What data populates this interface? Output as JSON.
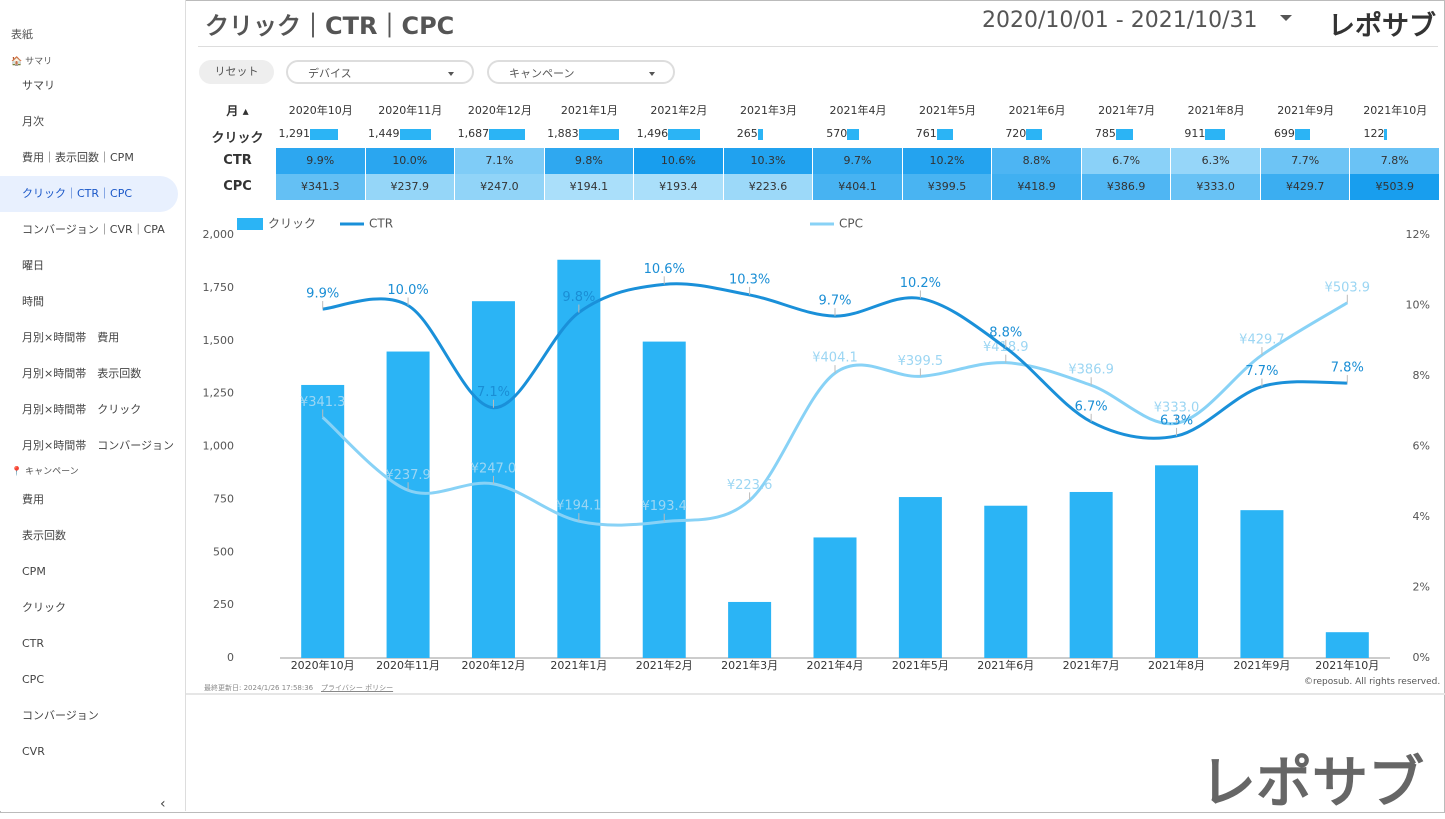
{
  "sidebar": {
    "top": "表紙",
    "sections": [
      {
        "heading": "サマリ",
        "items": [
          "サマリ",
          "月次",
          "費用｜表示回数｜CPM",
          "クリック｜CTR｜CPC",
          "コンバージョン｜CVR｜CPA",
          "曜日",
          "時間",
          "月別×時間帯　費用",
          "月別×時間帯　表示回数",
          "月別×時間帯　クリック",
          "月別×時間帯　コンバージョン"
        ]
      },
      {
        "heading": "キャンペーン",
        "items": [
          "費用",
          "表示回数",
          "CPM",
          "クリック",
          "CTR",
          "CPC",
          "コンバージョン",
          "CVR"
        ]
      }
    ]
  },
  "header": {
    "title": "クリック｜CTR｜CPC",
    "date_range": "2020/10/01 - 2021/10/31",
    "logo": "レポサブ"
  },
  "filters": {
    "reset": "リセット",
    "dropdowns": [
      "デバイス",
      "キャンペーン"
    ]
  },
  "table": {
    "month_header": "月"
  },
  "footer": {
    "updated": "最終更新日: 2024/1/26 17:58:36",
    "privacy": "プライバシー ポリシー",
    "copyright": "©reposub. All rights reserved."
  },
  "watermark": "レポサブ",
  "chart_data": {
    "type": "bar-line",
    "categories": [
      "2020年10月",
      "2020年11月",
      "2020年12月",
      "2021年1月",
      "2021年2月",
      "2021年3月",
      "2021年4月",
      "2021年5月",
      "2021年6月",
      "2021年7月",
      "2021年8月",
      "2021年9月",
      "2021年10月"
    ],
    "series": [
      {
        "name": "クリック",
        "type": "bar",
        "color": "#2bb4f5",
        "values": [
          1291,
          1449,
          1687,
          1883,
          1496,
          265,
          570,
          761,
          720,
          785,
          911,
          699,
          122
        ],
        "value_labels": [
          "1,291",
          "1,449",
          "1,687",
          "1,883",
          "1,496",
          "265",
          "570",
          "761",
          "720",
          "785",
          "911",
          "699",
          "122"
        ]
      },
      {
        "name": "CTR",
        "type": "line",
        "axis": "y2",
        "color": "#1a90d9",
        "values": [
          9.9,
          10.0,
          7.1,
          9.8,
          10.6,
          10.3,
          9.7,
          10.2,
          8.8,
          6.7,
          6.3,
          7.7,
          7.8
        ],
        "value_labels": [
          "9.9%",
          "10.0%",
          "7.1%",
          "9.8%",
          "10.6%",
          "10.3%",
          "9.7%",
          "10.2%",
          "8.8%",
          "6.7%",
          "6.3%",
          "7.7%",
          "7.8%"
        ]
      },
      {
        "name": "CPC",
        "type": "line",
        "axis": "y3",
        "color": "#88d2f6",
        "values": [
          341.3,
          237.9,
          247.0,
          194.1,
          193.4,
          223.6,
          404.1,
          399.5,
          418.9,
          386.9,
          333.0,
          429.7,
          503.9
        ],
        "value_labels": [
          "¥341.3",
          "¥237.9",
          "¥247.0",
          "¥194.1",
          "¥193.4",
          "¥223.6",
          "¥404.1",
          "¥399.5",
          "¥418.9",
          "¥386.9",
          "¥333.0",
          "¥429.7",
          "¥503.9"
        ]
      }
    ],
    "ylim": [
      0,
      2000
    ],
    "yticks": [
      0,
      250,
      500,
      750,
      {
        "value": 1000,
        "label": "1,000"
      },
      {
        "value": 1250,
        "label": "1,250"
      },
      {
        "value": 1500,
        "label": "1,500"
      },
      {
        "value": 1750,
        "label": "1,750"
      },
      {
        "value": 2000,
        "label": "2,000"
      }
    ],
    "y2lim": [
      0,
      12
    ],
    "y2ticks": [
      {
        "value": 0,
        "label": "0%"
      },
      {
        "value": 2,
        "label": "2%"
      },
      {
        "value": 4,
        "label": "4%"
      },
      {
        "value": 6,
        "label": "6%"
      },
      {
        "value": 8,
        "label": "8%"
      },
      {
        "value": 10,
        "label": "10%"
      },
      {
        "value": 12,
        "label": "12%"
      }
    ],
    "y3lim": [
      0,
      600
    ]
  }
}
